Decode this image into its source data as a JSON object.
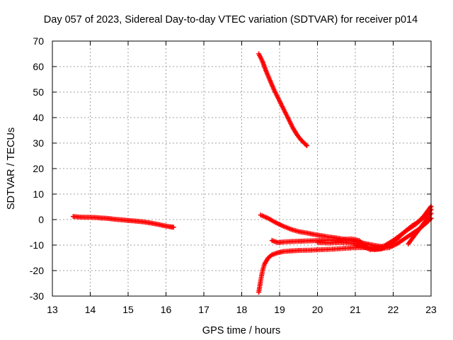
{
  "chart_data": {
    "type": "scatter",
    "title": "Day 057 of 2023, Sidereal Day-to-day VTEC variation (SDTVAR) for receiver p014",
    "xlabel": "GPS time / hours",
    "ylabel": "SDTVAR / TECUs",
    "xlim": [
      13,
      23
    ],
    "ylim": [
      -30,
      70
    ],
    "xticks": [
      13,
      14,
      15,
      16,
      17,
      18,
      19,
      20,
      21,
      22,
      23
    ],
    "yticks": [
      -30,
      -20,
      -10,
      0,
      10,
      20,
      30,
      40,
      50,
      60,
      70
    ],
    "grid": true,
    "marker": "plus",
    "color": "#ff0000",
    "series": [
      {
        "x": [
          13.55,
          13.7,
          13.85,
          14.0,
          14.15,
          14.3,
          14.45,
          14.6,
          14.75,
          14.9,
          15.05,
          15.2,
          15.35,
          15.5,
          15.65,
          15.8,
          15.95,
          16.1,
          16.2
        ],
        "y": [
          1.2,
          1.0,
          0.9,
          0.9,
          0.8,
          0.6,
          0.5,
          0.2,
          0.0,
          -0.2,
          -0.4,
          -0.6,
          -0.8,
          -1.1,
          -1.5,
          -1.9,
          -2.4,
          -2.8,
          -3.0
        ]
      },
      {
        "x": [
          18.45,
          18.55,
          18.65,
          18.75,
          18.85,
          18.95,
          19.05,
          19.15,
          19.25,
          19.35,
          19.45,
          19.55,
          19.65,
          19.72
        ],
        "y": [
          65,
          62,
          58,
          54.5,
          51,
          48,
          45,
          42,
          39,
          36,
          33.5,
          31.5,
          30,
          29
        ]
      },
      {
        "x": [
          18.5,
          18.7,
          18.9,
          19.1,
          19.3,
          19.5,
          19.7,
          19.9,
          20.1,
          20.3,
          20.5,
          20.7,
          20.9,
          21.1,
          21.3,
          21.5,
          21.7
        ],
        "y": [
          1.8,
          0.5,
          -1.2,
          -2.6,
          -3.8,
          -4.7,
          -5.2,
          -5.8,
          -6.3,
          -6.8,
          -7.2,
          -7.7,
          -8.3,
          -8.9,
          -9.5,
          -10.1,
          -10.6
        ]
      },
      {
        "x": [
          18.45,
          18.5,
          18.55,
          18.6,
          18.7,
          18.8,
          18.95,
          19.1,
          19.3,
          19.5,
          19.8,
          20.1,
          20.4,
          20.7,
          21.0,
          21.3,
          21.6,
          21.9,
          22.1,
          22.3,
          22.5,
          22.7,
          22.9,
          23.0
        ],
        "y": [
          -28.5,
          -24,
          -20,
          -17.5,
          -15,
          -13.8,
          -13,
          -12.5,
          -12.3,
          -12.1,
          -12.0,
          -11.8,
          -11.6,
          -11.3,
          -11.0,
          -11.0,
          -11.4,
          -11.0,
          -9.5,
          -7.5,
          -5.5,
          -3.5,
          -1.0,
          0.5
        ]
      },
      {
        "x": [
          18.8,
          18.95,
          19.1,
          19.3,
          19.5,
          19.7,
          19.9,
          20.1,
          20.3,
          20.5,
          20.7,
          20.9,
          21.1,
          21.3,
          21.5,
          21.7,
          21.9,
          22.1,
          22.3,
          22.5,
          22.7,
          22.9,
          23.0
        ],
        "y": [
          -8.2,
          -9.0,
          -8.8,
          -8.6,
          -8.5,
          -8.4,
          -8.3,
          -8.1,
          -8.0,
          -8.0,
          -7.7,
          -7.6,
          -8.2,
          -10.8,
          -11.8,
          -11.5,
          -9.8,
          -7.6,
          -4.8,
          -2.4,
          -0.5,
          2.0,
          4.0
        ]
      },
      {
        "x": [
          20.0,
          20.3,
          20.6,
          20.9,
          21.2,
          21.4,
          21.6,
          21.8,
          22.0,
          22.2,
          22.4,
          22.6,
          22.8,
          23.0
        ],
        "y": [
          -9.0,
          -9.2,
          -9.0,
          -9.2,
          -10.5,
          -11.8,
          -11.2,
          -10.0,
          -8.2,
          -6.0,
          -3.8,
          -1.8,
          1.2,
          5.2
        ]
      },
      {
        "x": [
          22.4,
          22.5,
          22.6,
          22.7,
          22.8,
          22.9,
          23.0
        ],
        "y": [
          -9.5,
          -7.5,
          -5.5,
          -3.6,
          -1.6,
          0.3,
          2.5
        ]
      }
    ]
  }
}
